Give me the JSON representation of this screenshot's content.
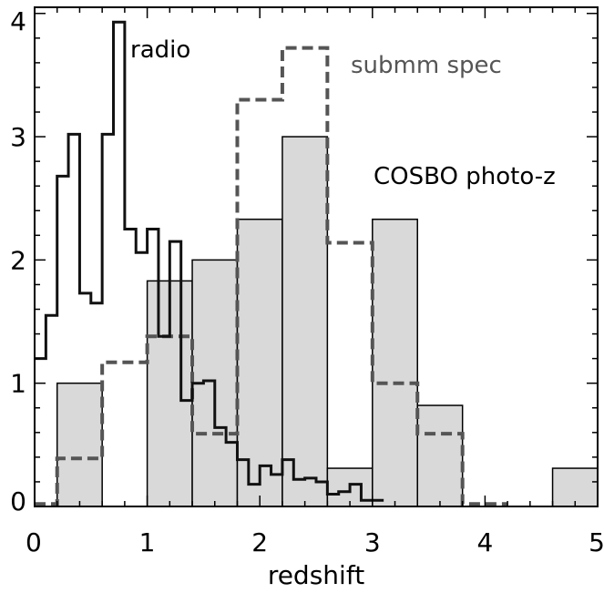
{
  "chart_data": {
    "type": "step-histogram",
    "xlabel": "redshift",
    "ylabel": "",
    "xlim": [
      0,
      5
    ],
    "ylim": [
      0,
      4.05
    ],
    "xticks": [
      "0",
      "1",
      "2",
      "3",
      "4",
      "5"
    ],
    "yticks": [
      "0",
      "1",
      "2",
      "3",
      "4"
    ],
    "grid": false,
    "series": [
      {
        "name": "COSBO photo-z",
        "style": "filled",
        "fill": "#d9d9d9",
        "stroke": "#000000",
        "edges": [
          0,
          0.2,
          0.6,
          1.0,
          1.4,
          1.8,
          2.2,
          2.6,
          3.0,
          3.4,
          3.8,
          4.2,
          4.6,
          5.0
        ],
        "values": [
          0,
          1.0,
          0,
          1.83,
          2.0,
          2.33,
          3.0,
          0.31,
          2.33,
          0.82,
          0,
          0,
          0.31
        ]
      },
      {
        "name": "submm spec",
        "style": "dashed",
        "stroke": "#555555",
        "edges": [
          0,
          0.2,
          0.6,
          1.0,
          1.4,
          1.8,
          2.2,
          2.6,
          3.0,
          3.4,
          3.8,
          4.2
        ],
        "values": [
          0.02,
          0.39,
          1.17,
          1.38,
          0.59,
          3.3,
          3.72,
          2.14,
          1.0,
          0.59,
          0.02
        ]
      },
      {
        "name": "radio",
        "style": "solid",
        "stroke": "#111111",
        "edges": [
          0,
          0.1,
          0.2,
          0.3,
          0.4,
          0.5,
          0.6,
          0.7,
          0.8,
          0.9,
          1.0,
          1.1,
          1.2,
          1.3,
          1.4,
          1.5,
          1.6,
          1.7,
          1.8,
          1.9,
          2.0,
          2.1,
          2.2,
          2.3,
          2.4,
          2.5,
          2.6,
          2.7,
          2.8,
          2.9,
          3.0,
          3.1
        ],
        "values": [
          1.2,
          1.55,
          2.68,
          3.02,
          1.73,
          1.65,
          3.02,
          3.93,
          2.25,
          2.06,
          2.25,
          1.38,
          2.15,
          0.86,
          1.0,
          1.02,
          0.64,
          0.52,
          0.38,
          0.18,
          0.33,
          0.26,
          0.38,
          0.22,
          0.23,
          0.2,
          0.1,
          0.12,
          0.18,
          0.05,
          0.05
        ]
      }
    ],
    "annotations": [
      "radio",
      "submm spec",
      "COSBO photo-z"
    ]
  }
}
